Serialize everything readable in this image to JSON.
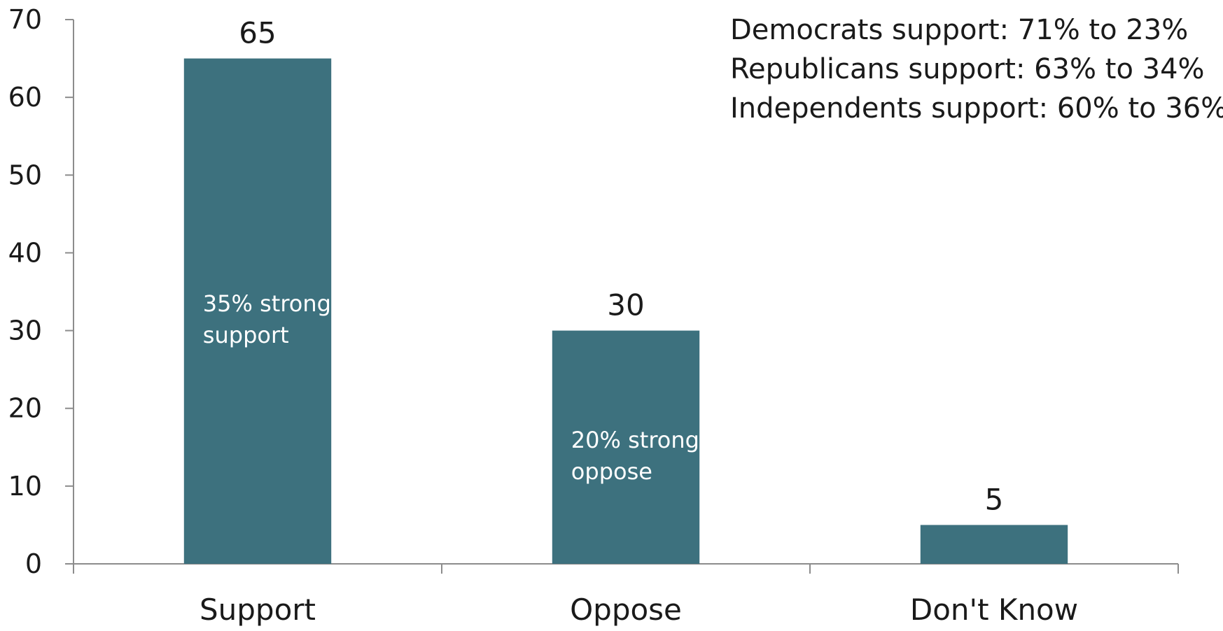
{
  "chart_data": {
    "type": "bar",
    "title": "",
    "xlabel": "",
    "ylabel": "",
    "ylim": [
      0,
      70
    ],
    "yticks": [
      0,
      10,
      20,
      30,
      40,
      50,
      60,
      70
    ],
    "categories": [
      "Support",
      "Oppose",
      "Don't Know"
    ],
    "values": [
      65,
      30,
      5
    ],
    "data_labels": [
      "65",
      "30",
      "5"
    ],
    "bar_notes": [
      [
        "35% strong",
        "support"
      ],
      [
        "20% strong",
        "oppose"
      ],
      []
    ],
    "annotations": [
      "Democrats support: 71% to 23%",
      "Republicans support: 63% to 34%",
      "Independents support: 60% to 36%"
    ],
    "grid": false,
    "legend": "none",
    "colors": {
      "bar": "#3d717e",
      "axis": "#8c8c8c",
      "text": "#1a1a1a",
      "inbar_text": "#ffffff"
    }
  }
}
